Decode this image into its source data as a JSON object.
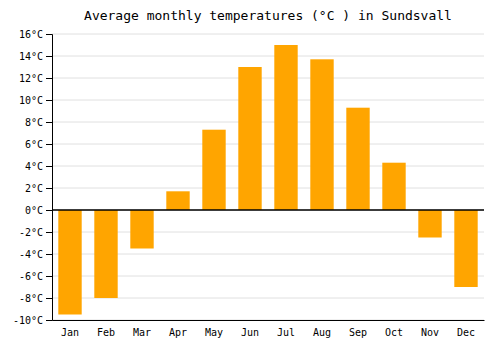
{
  "chart_data": {
    "type": "bar",
    "title": "Average monthly temperatures (°C ) in Sundsvall",
    "categories": [
      "Jan",
      "Feb",
      "Mar",
      "Apr",
      "May",
      "Jun",
      "Jul",
      "Aug",
      "Sep",
      "Oct",
      "Nov",
      "Dec"
    ],
    "values": [
      -9.5,
      -8.0,
      -3.5,
      1.7,
      7.3,
      13.0,
      15.0,
      13.7,
      9.3,
      4.3,
      -2.5,
      -7.0
    ],
    "color": "#FFA500",
    "ylim": [
      -10,
      16
    ],
    "yticks": [
      {
        "value": -10,
        "label": "-10°C"
      },
      {
        "value": -8,
        "label": "-8°C"
      },
      {
        "value": -6,
        "label": "-6°C"
      },
      {
        "value": -4,
        "label": "-4°C"
      },
      {
        "value": -2,
        "label": "-2°C"
      },
      {
        "value": 0,
        "label": "0°C"
      },
      {
        "value": 2,
        "label": "2°C"
      },
      {
        "value": 4,
        "label": "4°C"
      },
      {
        "value": 6,
        "label": "6°C"
      },
      {
        "value": 8,
        "label": "8°C"
      },
      {
        "value": 10,
        "label": "10°C"
      },
      {
        "value": 12,
        "label": "12°C"
      },
      {
        "value": 14,
        "label": "14°C"
      },
      {
        "value": 16,
        "label": "16°C"
      }
    ],
    "grid": true
  }
}
